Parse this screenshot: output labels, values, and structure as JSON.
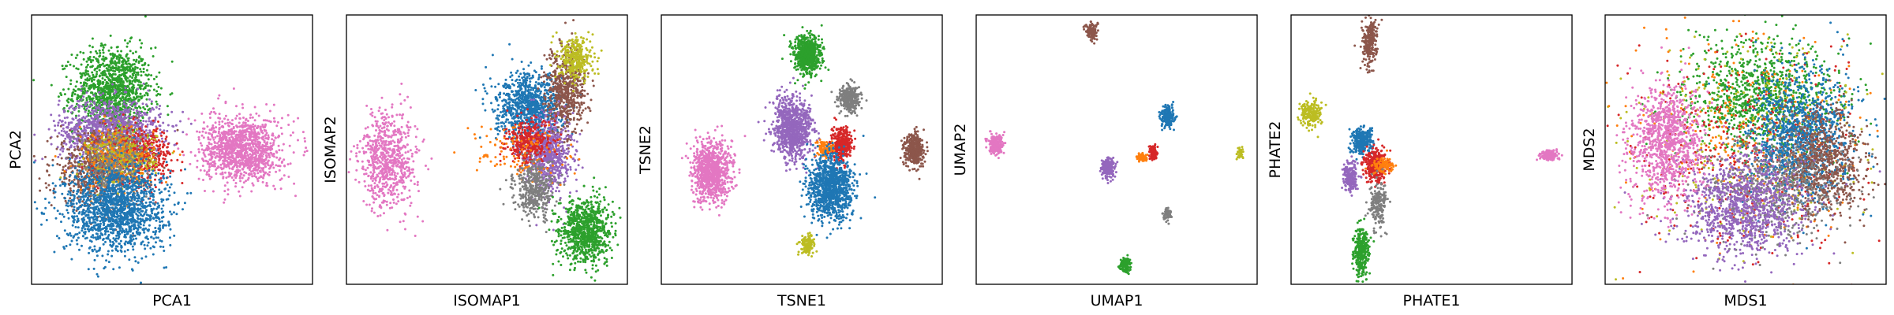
{
  "figure": {
    "palette": {
      "blue": "#1f77b4",
      "orange": "#ff7f0e",
      "green": "#2ca02c",
      "red": "#d62728",
      "purple": "#9467bd",
      "brown": "#8c564b",
      "pink": "#e377c2",
      "gray": "#7f7f7f",
      "olive": "#bcbd22"
    },
    "background": "#ffffff",
    "frame_color": "#000000"
  },
  "chart_data": [
    {
      "type": "scatter",
      "xlabel": "PCA1",
      "ylabel": "PCA2",
      "xlim": [
        0,
        100
      ],
      "ylim": [
        0,
        100
      ],
      "ticks": "none",
      "grid": false,
      "clusters": [
        {
          "color": "green",
          "x": 29,
          "y": 72,
          "sx": 7,
          "sy": 8,
          "n": 1200
        },
        {
          "color": "purple",
          "x": 28,
          "y": 57,
          "sx": 9,
          "sy": 6,
          "n": 1100
        },
        {
          "color": "brown",
          "x": 23,
          "y": 42,
          "sx": 8,
          "sy": 7,
          "n": 700
        },
        {
          "color": "red",
          "x": 38,
          "y": 48,
          "sx": 6,
          "sy": 5,
          "n": 500
        },
        {
          "color": "olive",
          "x": 32,
          "y": 47,
          "sx": 6,
          "sy": 5,
          "n": 400
        },
        {
          "color": "orange",
          "x": 30,
          "y": 46,
          "sx": 7,
          "sy": 6,
          "n": 200
        },
        {
          "color": "gray",
          "x": 30,
          "y": 45,
          "sx": 6,
          "sy": 6,
          "n": 250
        },
        {
          "color": "blue",
          "x": 30,
          "y": 28,
          "sx": 9,
          "sy": 8,
          "n": 1500
        },
        {
          "color": "pink",
          "x": 75,
          "y": 50,
          "sx": 7,
          "sy": 6,
          "n": 1200
        }
      ]
    },
    {
      "type": "scatter",
      "xlabel": "ISOMAP1",
      "ylabel": "ISOMAP2",
      "xlim": [
        0,
        100
      ],
      "ylim": [
        0,
        100
      ],
      "ticks": "none",
      "grid": false,
      "clusters": [
        {
          "color": "pink",
          "x": 15,
          "y": 46,
          "sx": 5,
          "sy": 9,
          "n": 700
        },
        {
          "color": "blue",
          "x": 65,
          "y": 66,
          "sx": 6,
          "sy": 6,
          "n": 900
        },
        {
          "color": "brown",
          "x": 78,
          "y": 72,
          "sx": 3.5,
          "sy": 8,
          "n": 600
        },
        {
          "color": "olive",
          "x": 82,
          "y": 84,
          "sx": 3,
          "sy": 4,
          "n": 300
        },
        {
          "color": "purple",
          "x": 72,
          "y": 48,
          "sx": 4,
          "sy": 7,
          "n": 700
        },
        {
          "color": "red",
          "x": 65,
          "y": 53,
          "sx": 4,
          "sy": 4,
          "n": 350
        },
        {
          "color": "orange",
          "x": 60,
          "y": 48,
          "sx": 9,
          "sy": 5,
          "n": 120
        },
        {
          "color": "gray",
          "x": 67,
          "y": 35,
          "sx": 3.5,
          "sy": 5,
          "n": 400
        },
        {
          "color": "green",
          "x": 85,
          "y": 20,
          "sx": 4.5,
          "sy": 6,
          "n": 900
        }
      ]
    },
    {
      "type": "scatter",
      "xlabel": "TSNE1",
      "ylabel": "TSNE2",
      "xlim": [
        0,
        100
      ],
      "ylim": [
        0,
        100
      ],
      "ticks": "none",
      "grid": false,
      "clusters": [
        {
          "color": "green",
          "x": 52,
          "y": 85,
          "sx": 2.4,
          "sy": 3.6,
          "n": 700
        },
        {
          "color": "gray",
          "x": 67,
          "y": 69,
          "sx": 1.8,
          "sy": 2.4,
          "n": 350
        },
        {
          "color": "purple",
          "x": 47,
          "y": 58,
          "sx": 3.5,
          "sy": 5.5,
          "n": 900
        },
        {
          "color": "red",
          "x": 64,
          "y": 52,
          "sx": 1.8,
          "sy": 3,
          "n": 350
        },
        {
          "color": "orange",
          "x": 58,
          "y": 50,
          "sx": 1.2,
          "sy": 1.6,
          "n": 100
        },
        {
          "color": "brown",
          "x": 90,
          "y": 50,
          "sx": 1.8,
          "sy": 3,
          "n": 350
        },
        {
          "color": "pink",
          "x": 18,
          "y": 42,
          "sx": 3.5,
          "sy": 5.5,
          "n": 900
        },
        {
          "color": "blue",
          "x": 60,
          "y": 36,
          "sx": 3.8,
          "sy": 6,
          "n": 1100
        },
        {
          "color": "olive",
          "x": 52,
          "y": 15,
          "sx": 1.2,
          "sy": 1.8,
          "n": 150
        }
      ]
    },
    {
      "type": "scatter",
      "xlabel": "UMAP1",
      "ylabel": "UMAP2",
      "xlim": [
        0,
        100
      ],
      "ylim": [
        0,
        100
      ],
      "ticks": "none",
      "grid": false,
      "clusters": [
        {
          "color": "brown",
          "x": 41,
          "y": 94,
          "sx": 1,
          "sy": 1.6,
          "n": 120
        },
        {
          "color": "blue",
          "x": 68,
          "y": 62,
          "sx": 1.2,
          "sy": 2,
          "n": 200
        },
        {
          "color": "pink",
          "x": 7,
          "y": 52,
          "sx": 1.2,
          "sy": 1.8,
          "n": 220
        },
        {
          "color": "olive",
          "x": 94,
          "y": 49,
          "sx": 0.6,
          "sy": 1,
          "n": 40
        },
        {
          "color": "red",
          "x": 63,
          "y": 49,
          "sx": 0.8,
          "sy": 1.4,
          "n": 90
        },
        {
          "color": "orange",
          "x": 59,
          "y": 47,
          "sx": 1.2,
          "sy": 0.8,
          "n": 60
        },
        {
          "color": "purple",
          "x": 47,
          "y": 43,
          "sx": 1.2,
          "sy": 2,
          "n": 200
        },
        {
          "color": "gray",
          "x": 68,
          "y": 26,
          "sx": 0.7,
          "sy": 1,
          "n": 60
        },
        {
          "color": "green",
          "x": 53,
          "y": 7,
          "sx": 0.9,
          "sy": 1.5,
          "n": 120
        }
      ]
    },
    {
      "type": "scatter",
      "xlabel": "PHATE1",
      "ylabel": "PHATE2",
      "xlim": [
        0,
        100
      ],
      "ylim": [
        0,
        100
      ],
      "ticks": "none",
      "grid": false,
      "clusters": [
        {
          "color": "brown",
          "x": 28,
          "y": 90,
          "sx": 1.3,
          "sy": 4.5,
          "n": 250
        },
        {
          "color": "olive",
          "x": 7,
          "y": 63,
          "sx": 1.8,
          "sy": 2.5,
          "n": 200
        },
        {
          "color": "blue",
          "x": 25,
          "y": 53,
          "sx": 1.8,
          "sy": 2.5,
          "n": 300
        },
        {
          "color": "red",
          "x": 30,
          "y": 44,
          "sx": 2,
          "sy": 3,
          "n": 300
        },
        {
          "color": "orange",
          "x": 33,
          "y": 44,
          "sx": 2,
          "sy": 1.5,
          "n": 100
        },
        {
          "color": "purple",
          "x": 21,
          "y": 40,
          "sx": 1.3,
          "sy": 3,
          "n": 200
        },
        {
          "color": "gray",
          "x": 31,
          "y": 30,
          "sx": 1.5,
          "sy": 4,
          "n": 200
        },
        {
          "color": "green",
          "x": 25,
          "y": 12,
          "sx": 1.2,
          "sy": 4.5,
          "n": 300
        },
        {
          "color": "pink",
          "x": 92,
          "y": 48,
          "sx": 1.5,
          "sy": 1,
          "n": 150
        }
      ]
    },
    {
      "type": "scatter",
      "xlabel": "MDS1",
      "ylabel": "MDS2",
      "xlim": [
        0,
        100
      ],
      "ylim": [
        0,
        100
      ],
      "ticks": "none",
      "grid": false,
      "clusters": [
        {
          "color": "green",
          "x": 55,
          "y": 70,
          "sx": 14,
          "sy": 10,
          "n": 1000
        },
        {
          "color": "olive",
          "x": 50,
          "y": 55,
          "sx": 22,
          "sy": 20,
          "n": 300
        },
        {
          "color": "orange",
          "x": 50,
          "y": 55,
          "sx": 22,
          "sy": 20,
          "n": 300
        },
        {
          "color": "red",
          "x": 52,
          "y": 50,
          "sx": 20,
          "sy": 18,
          "n": 400
        },
        {
          "color": "blue",
          "x": 70,
          "y": 55,
          "sx": 9,
          "sy": 12,
          "n": 1100
        },
        {
          "color": "brown",
          "x": 78,
          "y": 45,
          "sx": 7,
          "sy": 10,
          "n": 700
        },
        {
          "color": "gray",
          "x": 60,
          "y": 35,
          "sx": 12,
          "sy": 10,
          "n": 600
        },
        {
          "color": "purple",
          "x": 50,
          "y": 28,
          "sx": 11,
          "sy": 9,
          "n": 1000
        },
        {
          "color": "pink",
          "x": 22,
          "y": 53,
          "sx": 6.5,
          "sy": 11,
          "n": 1000
        }
      ]
    }
  ]
}
